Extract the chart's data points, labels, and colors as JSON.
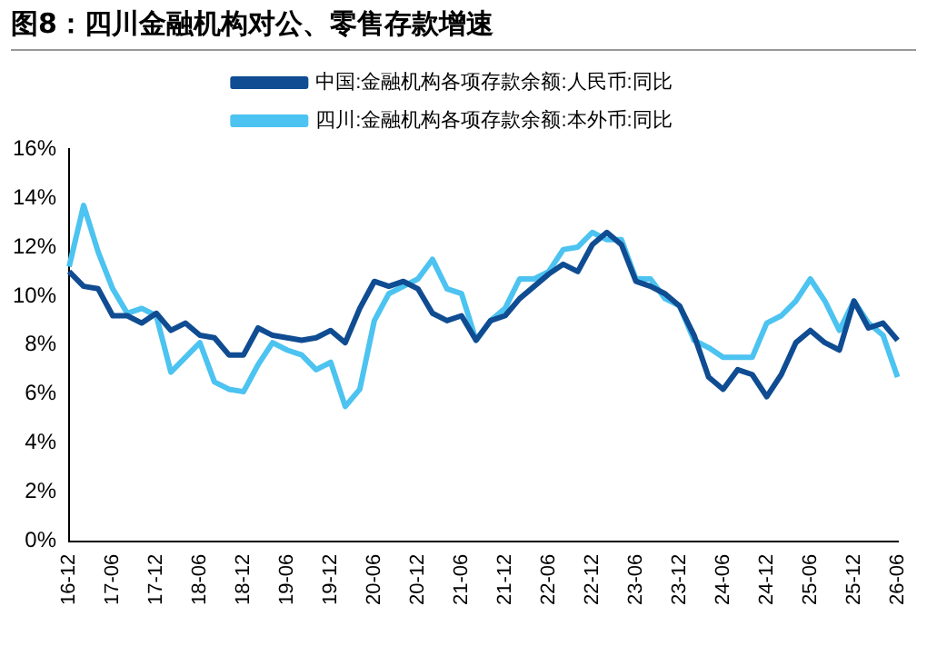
{
  "chart_data": {
    "type": "line",
    "title": "图8：四川金融机构对公、零售存款增速",
    "categories": [
      "16-12",
      null,
      null,
      "17-06",
      null,
      null,
      "17-12",
      null,
      null,
      "18-06",
      null,
      null,
      "18-12",
      null,
      null,
      "19-06",
      null,
      null,
      "19-12",
      null,
      null,
      "20-06",
      null,
      null,
      "20-12",
      null,
      null,
      "21-06",
      null,
      null,
      "21-12",
      null,
      null,
      "22-06",
      null,
      null,
      "22-12",
      null,
      null,
      "23-06",
      null,
      null,
      "23-12",
      null,
      null,
      "24-06",
      null,
      null,
      "24-12",
      null,
      null,
      "25-06",
      null,
      null,
      "25-12",
      null,
      null,
      "26-06"
    ],
    "series": [
      {
        "name": "中国:金融机构各项存款余额:人民币:同比",
        "color": "#0f4c92",
        "values": [
          11.0,
          10.4,
          10.3,
          9.2,
          9.2,
          8.9,
          9.3,
          8.6,
          8.9,
          8.4,
          8.3,
          7.6,
          7.6,
          8.7,
          8.4,
          8.3,
          8.2,
          8.3,
          8.6,
          8.1,
          9.5,
          10.6,
          10.4,
          10.6,
          10.3,
          9.3,
          9.0,
          9.2,
          8.2,
          9.0,
          9.2,
          9.9,
          10.4,
          10.9,
          11.3,
          11.0,
          12.1,
          12.6,
          12.1,
          10.6,
          10.4,
          10.1,
          9.6,
          8.4,
          6.7,
          6.2,
          7.0,
          6.8,
          5.9,
          6.8,
          8.1,
          8.6,
          8.1,
          7.8,
          9.8,
          8.7,
          8.9,
          8.2
        ]
      },
      {
        "name": "四川:金融机构各项存款余额:本外币:同比",
        "color": "#4cc3f0",
        "values": [
          11.2,
          13.7,
          11.8,
          10.3,
          9.3,
          9.5,
          9.2,
          6.9,
          7.5,
          8.1,
          6.5,
          6.2,
          6.1,
          7.2,
          8.1,
          7.8,
          7.6,
          7.0,
          7.3,
          5.5,
          6.2,
          9.0,
          10.1,
          10.4,
          10.7,
          11.5,
          10.3,
          10.1,
          8.2,
          9.0,
          9.5,
          10.7,
          10.7,
          11.0,
          11.9,
          12.0,
          12.6,
          12.3,
          12.3,
          10.7,
          10.7,
          9.9,
          9.6,
          8.2,
          7.9,
          7.5,
          7.5,
          7.5,
          8.9,
          9.2,
          9.8,
          10.7,
          9.8,
          8.6,
          9.8,
          8.9,
          8.4,
          6.7
        ]
      }
    ],
    "ylim": [
      0,
      16
    ],
    "yticks": [
      {
        "value": 0,
        "label": "0%"
      },
      {
        "value": 2,
        "label": "2%"
      },
      {
        "value": 4,
        "label": "4%"
      },
      {
        "value": 6,
        "label": "6%"
      },
      {
        "value": 8,
        "label": "8%"
      },
      {
        "value": 10,
        "label": "10%"
      },
      {
        "value": 12,
        "label": "12%"
      },
      {
        "value": 14,
        "label": "14%"
      },
      {
        "value": 16,
        "label": "16%"
      }
    ],
    "grid": false,
    "legend": "top",
    "marker": "none",
    "line_style": "solid"
  }
}
